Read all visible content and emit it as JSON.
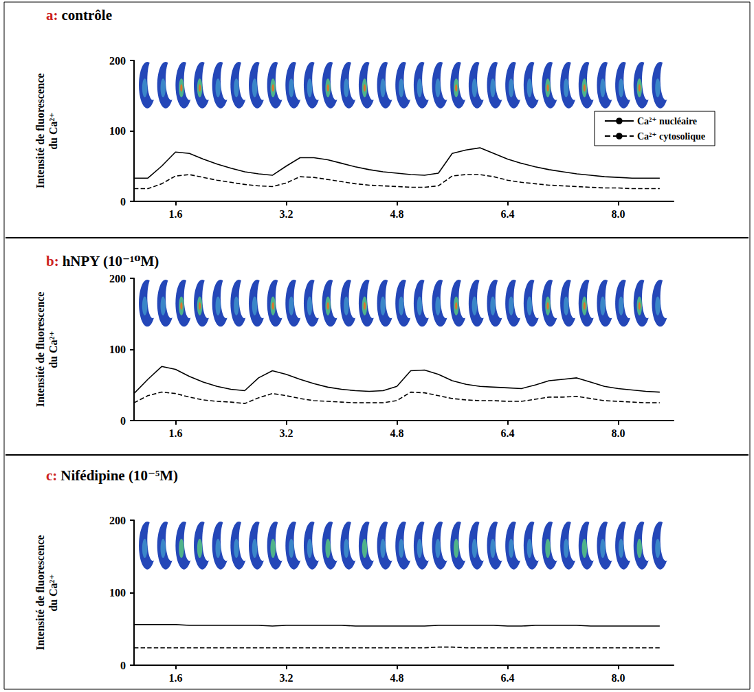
{
  "chart_data": [
    {
      "type": "line",
      "panel_label": "a:",
      "title": "contrôle",
      "y_label": "Intensité de fluorescence du Ca²⁺",
      "x": [
        1.0,
        1.2,
        1.4,
        1.6,
        1.8,
        2.0,
        2.2,
        2.4,
        2.6,
        2.8,
        3.0,
        3.2,
        3.4,
        3.6,
        3.8,
        4.0,
        4.2,
        4.4,
        4.6,
        4.8,
        5.0,
        5.2,
        5.4,
        5.6,
        5.8,
        6.0,
        6.2,
        6.4,
        6.6,
        6.8,
        7.0,
        7.2,
        7.4,
        7.6,
        7.8,
        8.0,
        8.2,
        8.4,
        8.6
      ],
      "series": [
        {
          "name": "Ca²⁺ nucléaire",
          "color": "#000000",
          "line_style": "solid",
          "values": [
            33,
            33,
            50,
            70,
            68,
            60,
            53,
            47,
            42,
            39,
            37,
            50,
            62,
            62,
            59,
            54,
            49,
            45,
            42,
            40,
            38,
            37,
            40,
            68,
            73,
            76,
            68,
            60,
            54,
            49,
            45,
            42,
            39,
            37,
            35,
            34,
            33,
            33,
            33
          ]
        },
        {
          "name": "Ca²⁺ cytosolique",
          "color": "#000000",
          "line_style": "dashed",
          "values": [
            18,
            18,
            25,
            36,
            38,
            34,
            30,
            27,
            24,
            22,
            21,
            26,
            35,
            34,
            31,
            28,
            25,
            23,
            22,
            21,
            20,
            20,
            22,
            36,
            38,
            38,
            35,
            30,
            27,
            25,
            23,
            22,
            21,
            20,
            19,
            19,
            18,
            18,
            18
          ]
        }
      ],
      "xlim": [
        1.0,
        8.8
      ],
      "xticks": [
        1.6,
        3.2,
        4.8,
        6.4,
        {
          "value": 8,
          "label": "8.0"
        }
      ],
      "ylim": [
        0,
        200
      ],
      "yticks": [
        0,
        100,
        200
      ],
      "grid": false,
      "legend": "upper right"
    },
    {
      "type": "line",
      "panel_label": "b:",
      "title": "hNPY (10⁻¹⁰M)",
      "y_label": "Intensité de fluorescence du Ca²⁺",
      "x": [
        1.0,
        1.2,
        1.4,
        1.6,
        1.8,
        2.0,
        2.2,
        2.4,
        2.6,
        2.8,
        3.0,
        3.2,
        3.4,
        3.6,
        3.8,
        4.0,
        4.2,
        4.4,
        4.6,
        4.8,
        5.0,
        5.2,
        5.4,
        5.6,
        5.8,
        6.0,
        6.2,
        6.4,
        6.6,
        6.8,
        7.0,
        7.2,
        7.4,
        7.6,
        7.8,
        8.0,
        8.2,
        8.4,
        8.6
      ],
      "series": [
        {
          "color": "#000000",
          "line_style": "solid",
          "values": [
            38,
            58,
            76,
            72,
            62,
            54,
            48,
            44,
            42,
            60,
            70,
            65,
            58,
            52,
            47,
            44,
            42,
            41,
            42,
            48,
            70,
            71,
            65,
            56,
            51,
            48,
            47,
            46,
            45,
            50,
            56,
            58,
            60,
            54,
            48,
            45,
            43,
            41,
            40
          ]
        },
        {
          "color": "#000000",
          "line_style": "dashed",
          "values": [
            25,
            35,
            40,
            38,
            33,
            29,
            27,
            26,
            24,
            32,
            38,
            35,
            31,
            28,
            27,
            26,
            25,
            25,
            25,
            28,
            40,
            39,
            35,
            31,
            29,
            28,
            28,
            27,
            27,
            30,
            33,
            33,
            34,
            31,
            28,
            27,
            26,
            25,
            25
          ]
        }
      ],
      "xlim": [
        1.0,
        8.8
      ],
      "xticks": [
        1.6,
        3.2,
        4.8,
        6.4,
        {
          "value": 8,
          "label": "8.0"
        }
      ],
      "ylim": [
        0,
        200
      ],
      "yticks": [
        0,
        100,
        200
      ],
      "grid": false
    },
    {
      "type": "line",
      "panel_label": "c:",
      "title": "Nifédipine (10⁻⁵M)",
      "y_label": "Intensité de fluorescence du Ca²⁺",
      "x": [
        1.0,
        1.2,
        1.4,
        1.6,
        1.8,
        2.0,
        2.2,
        2.4,
        2.6,
        2.8,
        3.0,
        3.2,
        3.4,
        3.6,
        3.8,
        4.0,
        4.2,
        4.4,
        4.6,
        4.8,
        5.0,
        5.2,
        5.4,
        5.6,
        5.8,
        6.0,
        6.2,
        6.4,
        6.6,
        6.8,
        7.0,
        7.2,
        7.4,
        7.6,
        7.8,
        8.0,
        8.2,
        8.4,
        8.6
      ],
      "series": [
        {
          "color": "#000000",
          "line_style": "solid",
          "values": [
            56,
            56,
            56,
            56,
            55,
            55,
            55,
            55,
            55,
            55,
            54,
            55,
            55,
            55,
            55,
            55,
            54,
            54,
            54,
            54,
            54,
            54,
            55,
            55,
            55,
            55,
            55,
            54,
            54,
            55,
            55,
            55,
            55,
            54,
            54,
            54,
            54,
            54,
            54
          ]
        },
        {
          "color": "#000000",
          "line_style": "dashed",
          "values": [
            24,
            24,
            24,
            24,
            24,
            24,
            24,
            24,
            24,
            24,
            24,
            24,
            24,
            24,
            24,
            24,
            24,
            24,
            24,
            24,
            24,
            24,
            25,
            25,
            24,
            24,
            24,
            24,
            24,
            24,
            24,
            24,
            24,
            24,
            24,
            24,
            24,
            24,
            24
          ]
        }
      ],
      "xlim": [
        1.0,
        8.8
      ],
      "xticks": [
        1.6,
        3.2,
        4.8,
        6.4,
        {
          "value": 8,
          "label": "8.0"
        }
      ],
      "ylim": [
        0,
        200
      ],
      "yticks": [
        0,
        100,
        200
      ],
      "grid": false
    }
  ]
}
